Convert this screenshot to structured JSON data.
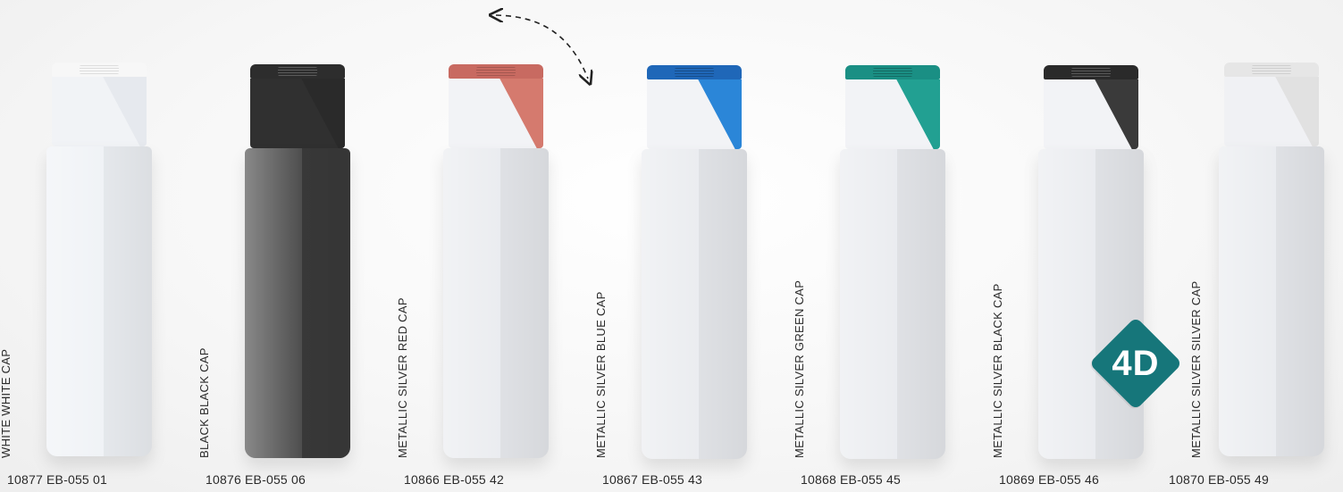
{
  "products": [
    {
      "label": "WHITE WHITE CAP",
      "code": "10877 EB-055 01",
      "body_color": "#eef1f5",
      "cap_color": "#f7f7f7",
      "cap_accent": "#eef1f5"
    },
    {
      "label": "BLACK BLACK CAP",
      "code": "10876 EB-055 06",
      "body_color": "#3a3a3a",
      "cap_color": "#2d2d2d",
      "cap_accent": "#2d2d2d"
    },
    {
      "label": "METALLIC SILVER RED CAP",
      "code": "10866 EB-055 42",
      "body_color": "#e8eaee",
      "cap_color": "#c86a61",
      "cap_accent": "#d57a6e"
    },
    {
      "label": "METALLIC SILVER BLUE CAP",
      "code": "10867 EB-055 43",
      "body_color": "#e8eaee",
      "cap_color": "#1f67b8",
      "cap_accent": "#2b86d8"
    },
    {
      "label": "METALLIC SILVER GREEN CAP",
      "code": "10868 EB-055 45",
      "body_color": "#e8eaee",
      "cap_color": "#1a8f84",
      "cap_accent": "#22a092"
    },
    {
      "label": "METALLIC SILVER BLACK CAP",
      "code": "10869 EB-055 46",
      "body_color": "#e8eaee",
      "cap_color": "#2a2a2a",
      "cap_accent": "#3a3a3a"
    },
    {
      "label": "METALLIC SILVER SILVER CAP",
      "code": "10870 EB-055 49",
      "body_color": "#e8eaee",
      "cap_color": "#e6e6e6",
      "cap_accent": "#e1e1e1"
    }
  ],
  "badge": {
    "text": "4D",
    "color": "#16767a"
  }
}
